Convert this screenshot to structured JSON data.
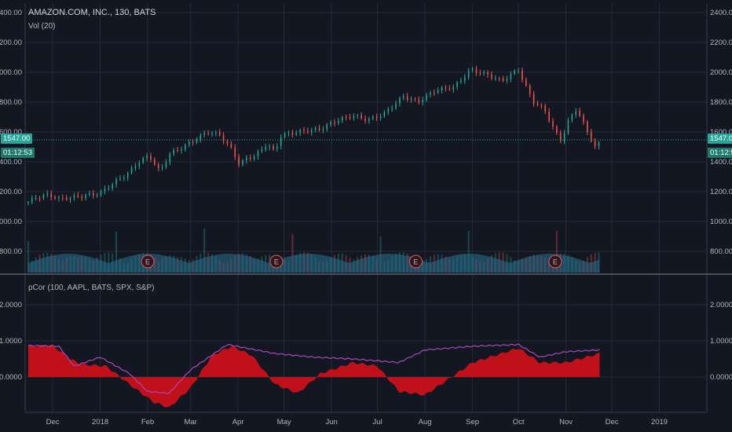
{
  "legend": {
    "symbol": "AMAZON.COM, INC., 130, BATS",
    "volume": "Vol (20)",
    "indicator": "pCor (100, AAPL, BATS, SPX, S&P)"
  },
  "price_tag": {
    "value": "1547.00",
    "countdown": "01:12:53"
  },
  "colors": {
    "background": "#131722",
    "grid": "#262a36",
    "up": "#26a69a",
    "down": "#ef5350",
    "volume_fill": "#2a6f8f",
    "correlation_fill": "#c0101a",
    "correlation_line": "#ab47bc",
    "price_line": "#26a69a",
    "earnings_marker": "#ef5350"
  },
  "chart_data": [
    {
      "type": "candlestick",
      "title": "AMAZON.COM, INC., 130, BATS",
      "x_tick_labels": [
        "Dec",
        "2018",
        "Feb",
        "Mar",
        "Apr",
        "May",
        "Jun",
        "Jul",
        "Aug",
        "Sep",
        "Oct",
        "Nov",
        "Dec",
        "2019"
      ],
      "y_tick_labels": [
        "2400.00",
        "2200.00",
        "2000.00",
        "1800.00",
        "1600.00",
        "1400.00",
        "1200.00",
        "1000.00",
        "800.00"
      ],
      "ylim": [
        650,
        2450
      ],
      "last_price": 1547.0,
      "close_series_approx": [
        {
          "x": "2017-11-15",
          "y": 1130
        },
        {
          "x": "2017-11-20",
          "y": 1160
        },
        {
          "x": "2017-11-28",
          "y": 1180
        },
        {
          "x": "2017-12-05",
          "y": 1150
        },
        {
          "x": "2017-12-12",
          "y": 1160
        },
        {
          "x": "2017-12-20",
          "y": 1170
        },
        {
          "x": "2018-01-01",
          "y": 1190
        },
        {
          "x": "2018-01-10",
          "y": 1260
        },
        {
          "x": "2018-01-20",
          "y": 1330
        },
        {
          "x": "2018-01-26",
          "y": 1400
        },
        {
          "x": "2018-02-02",
          "y": 1440
        },
        {
          "x": "2018-02-06",
          "y": 1380
        },
        {
          "x": "2018-02-09",
          "y": 1330
        },
        {
          "x": "2018-02-15",
          "y": 1450
        },
        {
          "x": "2018-02-26",
          "y": 1510
        },
        {
          "x": "2018-03-12",
          "y": 1600
        },
        {
          "x": "2018-03-20",
          "y": 1580
        },
        {
          "x": "2018-03-28",
          "y": 1480
        },
        {
          "x": "2018-04-02",
          "y": 1380
        },
        {
          "x": "2018-04-06",
          "y": 1420
        },
        {
          "x": "2018-04-12",
          "y": 1440
        },
        {
          "x": "2018-04-20",
          "y": 1520
        },
        {
          "x": "2018-04-26",
          "y": 1450
        },
        {
          "x": "2018-04-27",
          "y": 1570
        },
        {
          "x": "2018-05-10",
          "y": 1600
        },
        {
          "x": "2018-05-25",
          "y": 1620
        },
        {
          "x": "2018-06-05",
          "y": 1680
        },
        {
          "x": "2018-06-15",
          "y": 1710
        },
        {
          "x": "2018-06-25",
          "y": 1680
        },
        {
          "x": "2018-07-05",
          "y": 1720
        },
        {
          "x": "2018-07-18",
          "y": 1840
        },
        {
          "x": "2018-07-27",
          "y": 1800
        },
        {
          "x": "2018-08-08",
          "y": 1880
        },
        {
          "x": "2018-08-20",
          "y": 1900
        },
        {
          "x": "2018-08-31",
          "y": 2020
        },
        {
          "x": "2018-09-05",
          "y": 2000
        },
        {
          "x": "2018-09-12",
          "y": 1980
        },
        {
          "x": "2018-09-20",
          "y": 1940
        },
        {
          "x": "2018-10-01",
          "y": 2020
        },
        {
          "x": "2018-10-05",
          "y": 1920
        },
        {
          "x": "2018-10-11",
          "y": 1800
        },
        {
          "x": "2018-10-18",
          "y": 1750
        },
        {
          "x": "2018-10-25",
          "y": 1600
        },
        {
          "x": "2018-10-29",
          "y": 1540
        },
        {
          "x": "2018-11-02",
          "y": 1660
        },
        {
          "x": "2018-11-08",
          "y": 1760
        },
        {
          "x": "2018-11-14",
          "y": 1620
        },
        {
          "x": "2018-11-20",
          "y": 1500
        },
        {
          "x": "2018-11-23",
          "y": 1520
        }
      ],
      "earnings_markers": [
        "2018-02-01",
        "2018-04-26",
        "2018-07-26",
        "2018-10-25"
      ],
      "earnings_label": "E"
    },
    {
      "type": "area",
      "title": "pCor (100, AAPL, BATS, SPX, S&P)",
      "y_tick_labels": [
        "2.0000",
        "1.0000",
        "0.0000"
      ],
      "ylim": [
        -0.95,
        2.45
      ],
      "series": [
        {
          "values_approx": [
            {
              "x": "2017-11-15",
              "y": 0.85
            },
            {
              "x": "2017-12-01",
              "y": 0.87
            },
            {
              "x": "2017-12-12",
              "y": 0.5
            },
            {
              "x": "2017-12-20",
              "y": 0.35
            },
            {
              "x": "2018-01-05",
              "y": 0.3
            },
            {
              "x": "2018-01-20",
              "y": -0.2
            },
            {
              "x": "2018-02-05",
              "y": -0.7
            },
            {
              "x": "2018-02-15",
              "y": -0.85
            },
            {
              "x": "2018-03-01",
              "y": -0.3
            },
            {
              "x": "2018-03-15",
              "y": 0.6
            },
            {
              "x": "2018-03-28",
              "y": 0.85
            },
            {
              "x": "2018-04-10",
              "y": 0.6
            },
            {
              "x": "2018-04-25",
              "y": -0.2
            },
            {
              "x": "2018-05-10",
              "y": -0.45
            },
            {
              "x": "2018-05-25",
              "y": 0.1
            },
            {
              "x": "2018-06-15",
              "y": 0.4
            },
            {
              "x": "2018-07-01",
              "y": 0.3
            },
            {
              "x": "2018-07-15",
              "y": -0.4
            },
            {
              "x": "2018-08-01",
              "y": -0.5
            },
            {
              "x": "2018-08-15",
              "y": -0.1
            },
            {
              "x": "2018-09-01",
              "y": 0.4
            },
            {
              "x": "2018-10-01",
              "y": 0.8
            },
            {
              "x": "2018-10-15",
              "y": 0.4
            },
            {
              "x": "2018-11-01",
              "y": 0.4
            },
            {
              "x": "2018-11-23",
              "y": 0.65
            }
          ]
        },
        {
          "values_approx": [
            {
              "x": "2017-11-15",
              "y": 0.87
            },
            {
              "x": "2017-12-05",
              "y": 0.85
            },
            {
              "x": "2017-12-15",
              "y": 0.3
            },
            {
              "x": "2018-01-01",
              "y": 0.55
            },
            {
              "x": "2018-01-20",
              "y": 0.1
            },
            {
              "x": "2018-02-01",
              "y": -0.4
            },
            {
              "x": "2018-02-15",
              "y": -0.45
            },
            {
              "x": "2018-03-01",
              "y": 0.2
            },
            {
              "x": "2018-03-25",
              "y": 0.9
            },
            {
              "x": "2018-04-25",
              "y": 0.65
            },
            {
              "x": "2018-05-20",
              "y": 0.55
            },
            {
              "x": "2018-06-15",
              "y": 0.5
            },
            {
              "x": "2018-07-15",
              "y": 0.4
            },
            {
              "x": "2018-08-01",
              "y": 0.75
            },
            {
              "x": "2018-09-01",
              "y": 0.85
            },
            {
              "x": "2018-10-01",
              "y": 0.9
            },
            {
              "x": "2018-10-15",
              "y": 0.55
            },
            {
              "x": "2018-11-01",
              "y": 0.7
            },
            {
              "x": "2018-11-23",
              "y": 0.75
            }
          ]
        }
      ]
    }
  ]
}
